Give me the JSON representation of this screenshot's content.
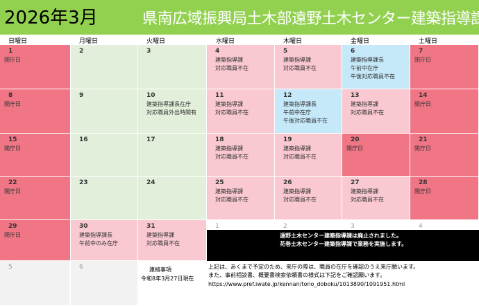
{
  "header": {
    "month": "2026年3月",
    "title": "県南広域振興局土木部遠野土木センター建築指導課"
  },
  "weekdays": [
    "日曜日",
    "月曜日",
    "火曜日",
    "水曜日",
    "木曜日",
    "金曜日",
    "土曜日"
  ],
  "cells": [
    {
      "day": "1",
      "notes": [
        "閉庁日"
      ],
      "color": "red"
    },
    {
      "day": "2",
      "notes": [],
      "color": "green"
    },
    {
      "day": "3",
      "notes": [],
      "color": "green"
    },
    {
      "day": "4",
      "notes": [
        "建築指導課",
        "対応職員不在"
      ],
      "color": "pink"
    },
    {
      "day": "5",
      "notes": [
        "建築指導課",
        "対応職員不在"
      ],
      "color": "pink"
    },
    {
      "day": "6",
      "notes": [
        "建築指導課長",
        "午前中在庁",
        "午後対応職員不在"
      ],
      "color": "blue"
    },
    {
      "day": "7",
      "notes": [
        "閉庁日"
      ],
      "color": "red"
    },
    {
      "day": "8",
      "notes": [
        "閉庁日"
      ],
      "color": "red"
    },
    {
      "day": "9",
      "notes": [],
      "color": "green"
    },
    {
      "day": "10",
      "notes": [
        "建築指導課長在庁",
        "対応職員外出時間有"
      ],
      "color": "green"
    },
    {
      "day": "11",
      "notes": [
        "建築指導課",
        "対応職員不在"
      ],
      "color": "pink"
    },
    {
      "day": "12",
      "notes": [
        "建築指導課長",
        "午前中在庁",
        "午後対応職員不在"
      ],
      "color": "blue"
    },
    {
      "day": "13",
      "notes": [
        "建築指導課",
        "対応職員不在"
      ],
      "color": "pink"
    },
    {
      "day": "14",
      "notes": [
        "閉庁日"
      ],
      "color": "red"
    },
    {
      "day": "15",
      "notes": [
        "閉庁日"
      ],
      "color": "red"
    },
    {
      "day": "16",
      "notes": [],
      "color": "green"
    },
    {
      "day": "17",
      "notes": [],
      "color": "green"
    },
    {
      "day": "18",
      "notes": [
        "建築指導課",
        "対応職員不在"
      ],
      "color": "pink"
    },
    {
      "day": "19",
      "notes": [
        "建築指導課",
        "対応職員不在"
      ],
      "color": "pink"
    },
    {
      "day": "20",
      "notes": [
        "閉庁日"
      ],
      "color": "red"
    },
    {
      "day": "21",
      "notes": [
        "閉庁日"
      ],
      "color": "red"
    },
    {
      "day": "22",
      "notes": [
        "閉庁日"
      ],
      "color": "red"
    },
    {
      "day": "23",
      "notes": [],
      "color": "green"
    },
    {
      "day": "24",
      "notes": [],
      "color": "green"
    },
    {
      "day": "25",
      "notes": [
        "建築指導課",
        "対応職員不在"
      ],
      "color": "pink"
    },
    {
      "day": "26",
      "notes": [
        "建築指導課",
        "対応職員不在"
      ],
      "color": "pink"
    },
    {
      "day": "27",
      "notes": [
        "建築指導課",
        "対応職員不在"
      ],
      "color": "pink"
    },
    {
      "day": "28",
      "notes": [
        "閉庁日"
      ],
      "color": "red"
    },
    {
      "day": "29",
      "notes": [
        "閉庁日"
      ],
      "color": "red"
    },
    {
      "day": "30",
      "notes": [
        "建築指導課長",
        "午前中のみ在庁"
      ],
      "color": "pink"
    },
    {
      "day": "31",
      "notes": [
        "建築指導課",
        "対応職員不在"
      ],
      "color": "pink"
    },
    {
      "day": "1",
      "notes": [],
      "color": "white",
      "muted": true
    },
    {
      "day": "2",
      "notes": [],
      "color": "white",
      "muted": true
    },
    {
      "day": "3",
      "notes": [],
      "color": "white",
      "muted": true
    },
    {
      "day": "4",
      "notes": [],
      "color": "white",
      "muted": true
    },
    {
      "day": "5",
      "notes": [],
      "color": "gray",
      "muted": true
    },
    {
      "day": "6",
      "notes": [],
      "color": "gray",
      "muted": true
    }
  ],
  "banner": {
    "line1": "遠野土木センター建築指導課は廃止されました。",
    "line2": "花巻土木センター建築指導課で業務を実施します。"
  },
  "footer": {
    "contact_label": "連絡事項",
    "as_of": "令和8年3月27日現在",
    "line1": "上記は、あくまで予定のため、来庁の際は、職員の在庁を確認のうえ来庁願います。",
    "line2": "また、事前相談書、概要書検索依頼書の様式は下記をご確認願います。",
    "line3": "https://www.pref.iwate.jp/kennan/tono_doboku/1013890/1091951.html"
  },
  "colors": {
    "header": "#92d050",
    "closed": "#f07585",
    "absent": "#f9c8d0",
    "available": "#e2efda",
    "partial": "#c5e9f9",
    "banner": "#000000"
  }
}
